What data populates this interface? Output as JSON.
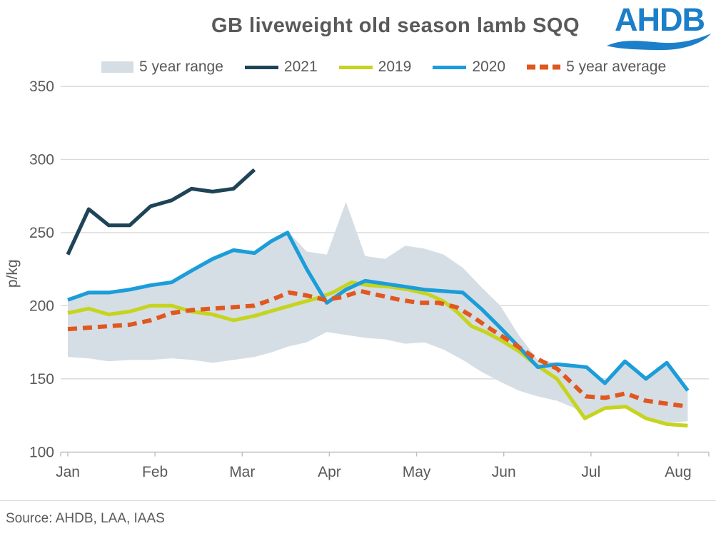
{
  "header": {
    "title": "GB liveweight old season lamb SQQ",
    "logo_text": "AHDB"
  },
  "footer": {
    "source": "Source: AHDB, LAA, IAAS"
  },
  "colors": {
    "title_text": "#595959",
    "axis_text": "#595959",
    "gridline": "#d9d9d9",
    "axis_line": "#bfbfbf",
    "band": "#d5dee5",
    "navy": "#1f4457",
    "yellow": "#c6d41f",
    "blue": "#1b9dd9",
    "orange": "#e0571f",
    "logo_blue": "#1b7fc9"
  },
  "legend": {
    "items": [
      {
        "label": "5 year range",
        "swatch": "box",
        "color_key": "band"
      },
      {
        "label": "2021",
        "swatch": "line",
        "color_key": "navy"
      },
      {
        "label": "2019",
        "swatch": "line",
        "color_key": "yellow"
      },
      {
        "label": "2020",
        "swatch": "line",
        "color_key": "blue"
      },
      {
        "label": "5 year average",
        "swatch": "dash",
        "color_key": "orange"
      }
    ]
  },
  "chart_data": {
    "type": "line",
    "title": "GB liveweight old season lamb SQQ",
    "ylabel": "p/kg",
    "unit": "p/kg",
    "x_unit": "month offset (0 = Jan … 7 = Aug), weekly observations",
    "x_tick_labels": [
      "Jan",
      "Feb",
      "Mar",
      "Apr",
      "May",
      "Jun",
      "Jul",
      "Aug"
    ],
    "x_tick_positions": [
      0,
      1,
      2,
      3,
      4,
      5,
      6,
      7
    ],
    "y_ticks": [
      100,
      150,
      200,
      250,
      300,
      350
    ],
    "ylim": [
      97,
      356
    ],
    "grid": "horizontal",
    "legend_position": "top",
    "series": [
      {
        "name": "5 year range",
        "type": "band",
        "color_key": "band",
        "x": [
          0,
          0.24,
          0.47,
          0.71,
          0.95,
          1.19,
          1.42,
          1.66,
          1.9,
          2.14,
          2.33,
          2.52,
          2.74,
          2.97,
          3.19,
          3.41,
          3.64,
          3.87,
          4.09,
          4.31,
          4.53,
          4.74,
          4.96,
          5.17,
          5.39,
          5.61,
          5.81,
          5.95,
          6.16,
          6.39,
          6.63,
          6.87,
          7.11
        ],
        "top": [
          204,
          209,
          209,
          211,
          215,
          217,
          225,
          233,
          239,
          237,
          245,
          251,
          237,
          235,
          271,
          234,
          232,
          241,
          239,
          235,
          226,
          213,
          200,
          180,
          163,
          161,
          160,
          159,
          148,
          163,
          151,
          162,
          143
        ],
        "bottom": [
          165,
          164,
          162,
          163,
          163,
          164,
          163,
          161,
          163,
          165,
          168,
          172,
          175,
          182,
          180,
          178,
          177,
          174,
          175,
          170,
          163,
          155,
          148,
          142,
          138,
          135,
          130,
          123,
          130,
          131,
          123,
          120,
          121
        ]
      },
      {
        "name": "2021",
        "type": "line",
        "color_key": "navy",
        "dash": false,
        "points": [
          [
            0,
            235
          ],
          [
            0.24,
            266
          ],
          [
            0.47,
            255
          ],
          [
            0.71,
            255
          ],
          [
            0.95,
            268
          ],
          [
            1.19,
            272
          ],
          [
            1.42,
            280
          ],
          [
            1.66,
            278
          ],
          [
            1.9,
            280
          ],
          [
            2.14,
            293
          ]
        ]
      },
      {
        "name": "2019",
        "type": "line",
        "color_key": "yellow",
        "dash": false,
        "points": [
          [
            0,
            195
          ],
          [
            0.24,
            198
          ],
          [
            0.47,
            194
          ],
          [
            0.71,
            196
          ],
          [
            0.95,
            200
          ],
          [
            1.19,
            200
          ],
          [
            1.42,
            196
          ],
          [
            1.66,
            194
          ],
          [
            1.9,
            190
          ],
          [
            2.14,
            193
          ],
          [
            2.37,
            197
          ],
          [
            2.61,
            201
          ],
          [
            2.85,
            205
          ],
          [
            3.04,
            209
          ],
          [
            3.25,
            216
          ],
          [
            3.45,
            214
          ],
          [
            3.68,
            213
          ],
          [
            3.91,
            211
          ],
          [
            4.13,
            208
          ],
          [
            4.31,
            203
          ],
          [
            4.46,
            196
          ],
          [
            4.63,
            186
          ],
          [
            4.79,
            182
          ],
          [
            4.98,
            176
          ],
          [
            5.17,
            169
          ],
          [
            5.36,
            160
          ],
          [
            5.61,
            150
          ],
          [
            5.93,
            123
          ],
          [
            6.16,
            130
          ],
          [
            6.4,
            131
          ],
          [
            6.63,
            123
          ],
          [
            6.87,
            119
          ],
          [
            7.11,
            118
          ]
        ]
      },
      {
        "name": "2020",
        "type": "line",
        "color_key": "blue",
        "dash": false,
        "points": [
          [
            0,
            204
          ],
          [
            0.24,
            209
          ],
          [
            0.47,
            209
          ],
          [
            0.71,
            211
          ],
          [
            0.95,
            214
          ],
          [
            1.19,
            216
          ],
          [
            1.42,
            224
          ],
          [
            1.66,
            232
          ],
          [
            1.9,
            238
          ],
          [
            2.14,
            236
          ],
          [
            2.33,
            244
          ],
          [
            2.52,
            250
          ],
          [
            2.74,
            225
          ],
          [
            2.97,
            202
          ],
          [
            3.19,
            211
          ],
          [
            3.41,
            217
          ],
          [
            3.64,
            215
          ],
          [
            3.87,
            213
          ],
          [
            4.09,
            211
          ],
          [
            4.31,
            210
          ],
          [
            4.53,
            209
          ],
          [
            4.74,
            198
          ],
          [
            4.96,
            185
          ],
          [
            5.17,
            172
          ],
          [
            5.39,
            158
          ],
          [
            5.61,
            160
          ],
          [
            5.95,
            158
          ],
          [
            6.16,
            147
          ],
          [
            6.39,
            162
          ],
          [
            6.63,
            150
          ],
          [
            6.87,
            161
          ],
          [
            7.11,
            142
          ]
        ]
      },
      {
        "name": "5 year average",
        "type": "line",
        "color_key": "orange",
        "dash": true,
        "points": [
          [
            0,
            184
          ],
          [
            0.24,
            185
          ],
          [
            0.47,
            186
          ],
          [
            0.71,
            187
          ],
          [
            0.95,
            190
          ],
          [
            1.19,
            195
          ],
          [
            1.42,
            197
          ],
          [
            1.66,
            198
          ],
          [
            1.9,
            199
          ],
          [
            2.14,
            200
          ],
          [
            2.33,
            204
          ],
          [
            2.54,
            209
          ],
          [
            2.74,
            207
          ],
          [
            2.95,
            204
          ],
          [
            3.15,
            206
          ],
          [
            3.36,
            210
          ],
          [
            3.58,
            207
          ],
          [
            3.81,
            204
          ],
          [
            4.03,
            202
          ],
          [
            4.25,
            202
          ],
          [
            4.46,
            199
          ],
          [
            4.63,
            193
          ],
          [
            4.85,
            184
          ],
          [
            5.09,
            175
          ],
          [
            5.34,
            165
          ],
          [
            5.61,
            157
          ],
          [
            5.94,
            138
          ],
          [
            6.16,
            137
          ],
          [
            6.4,
            140
          ],
          [
            6.63,
            135
          ],
          [
            6.87,
            133
          ],
          [
            7.11,
            131
          ]
        ]
      }
    ]
  }
}
